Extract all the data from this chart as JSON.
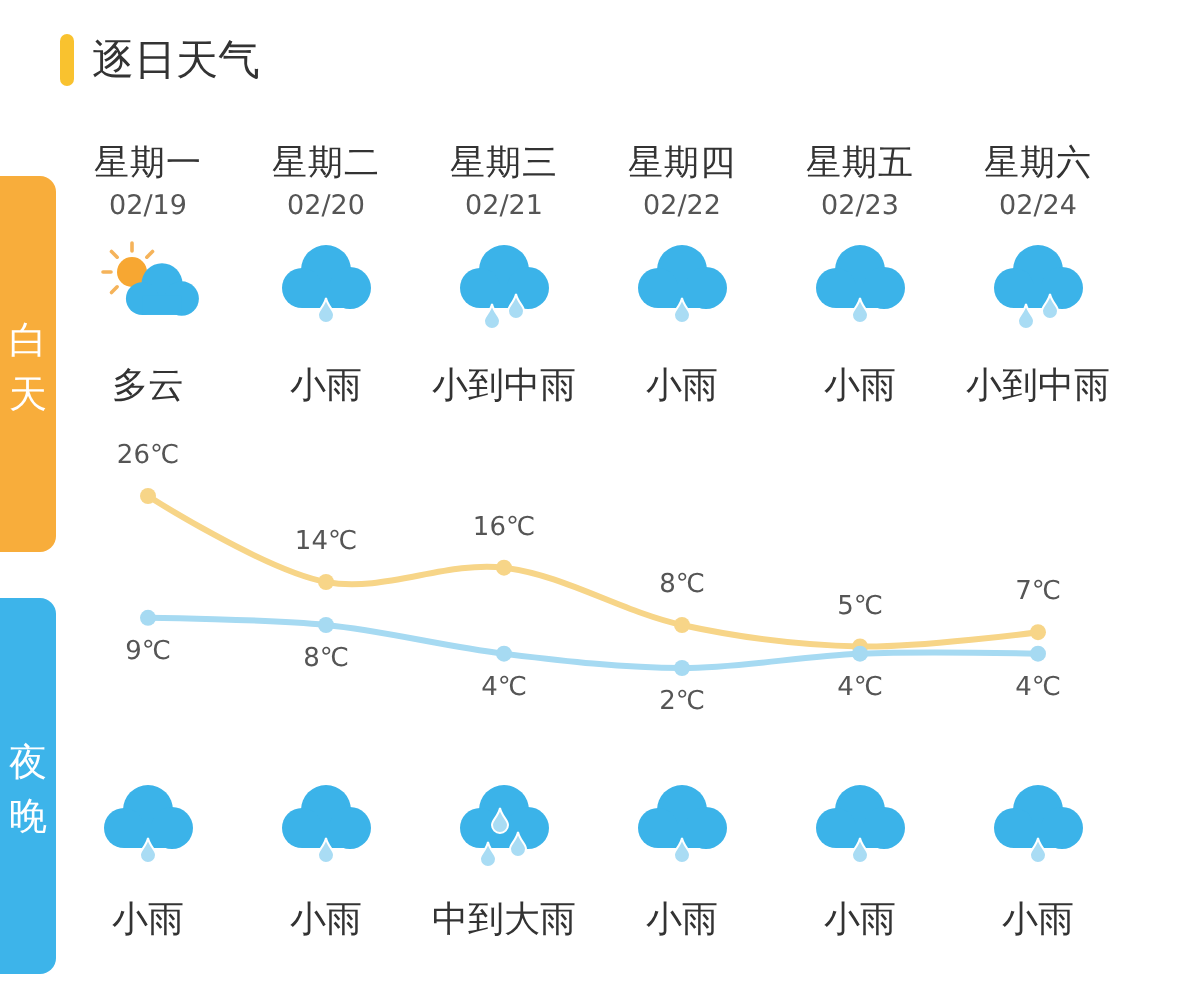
{
  "chart_data": {
    "type": "line",
    "title": "逐日天气",
    "categories": [
      "星期一\n02/19",
      "星期二\n02/20",
      "星期三\n02/21",
      "星期四\n02/22",
      "星期五\n02/23",
      "星期六\n02/24"
    ],
    "series": [
      {
        "color": "#f7d588",
        "values": [
          26,
          14,
          16,
          8,
          5,
          7
        ],
        "value_labels": [
          "26℃",
          "14℃",
          "16℃",
          "8℃",
          "5℃",
          "7℃"
        ]
      },
      {
        "color": "#a6daf2",
        "values": [
          9,
          8,
          4,
          2,
          4,
          4
        ],
        "value_labels": [
          "9℃",
          "8℃",
          "4℃",
          "2℃",
          "4℃",
          "4℃"
        ]
      }
    ],
    "tick_labels": "x",
    "marker": "circle",
    "annotations": [
      "白天",
      "多云",
      "小雨",
      "小到中雨",
      "小雨",
      "小雨",
      "小到中雨",
      "夜晚",
      "小雨",
      "小雨",
      "中到大雨",
      "小雨",
      "小雨",
      "小雨"
    ]
  }
}
